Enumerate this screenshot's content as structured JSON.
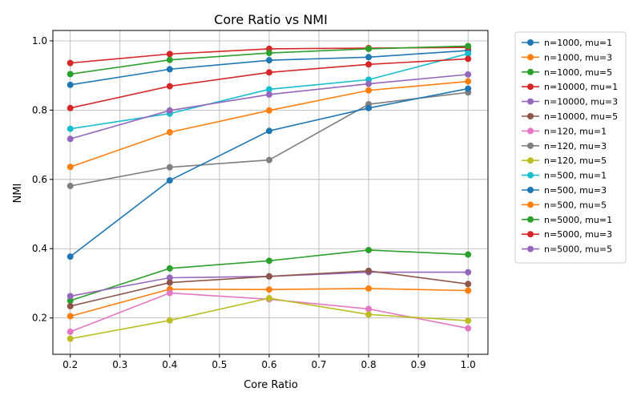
{
  "chart_data": {
    "type": "line",
    "title": "Core Ratio vs NMI",
    "xlabel": "Core Ratio",
    "ylabel": "NMI",
    "xlim": [
      0.165,
      1.04
    ],
    "ylim": [
      0.095,
      1.03
    ],
    "xticks": [
      0.2,
      0.3,
      0.4,
      0.5,
      0.6,
      0.7,
      0.8,
      0.9,
      1.0
    ],
    "xtick_labels": [
      "0.2",
      "0.3",
      "0.4",
      "0.5",
      "0.6",
      "0.7",
      "0.8",
      "0.9",
      "1.0"
    ],
    "yticks": [
      0.2,
      0.4,
      0.6,
      0.8,
      1.0
    ],
    "ytick_labels": [
      "0.2",
      "0.4",
      "0.6",
      "0.8",
      "1.0"
    ],
    "grid": true,
    "legend_position": "outside-right",
    "x": [
      0.2,
      0.4,
      0.6,
      0.8,
      1.0
    ],
    "series": [
      {
        "name": "n=1000, mu=1",
        "color": "#1f77b4",
        "values": [
          0.873,
          0.918,
          0.944,
          0.953,
          0.972
        ]
      },
      {
        "name": "n=1000, mu=3",
        "color": "#ff7f0e",
        "values": [
          0.205,
          0.283,
          0.282,
          0.285,
          0.279
        ]
      },
      {
        "name": "n=1000, mu=5",
        "color": "#2ca02c",
        "values": [
          0.25,
          0.343,
          0.365,
          0.396,
          0.383
        ]
      },
      {
        "name": "n=10000, mu=1",
        "color": "#d62728",
        "values": [
          0.936,
          0.962,
          0.977,
          0.979,
          0.981
        ]
      },
      {
        "name": "n=10000, mu=3",
        "color": "#9467bd",
        "values": [
          0.263,
          0.316,
          0.32,
          0.332,
          0.332
        ]
      },
      {
        "name": "n=10000, mu=5",
        "color": "#8c564b",
        "values": [
          0.234,
          0.302,
          0.32,
          0.336,
          0.298
        ]
      },
      {
        "name": "n=120, mu=1",
        "color": "#e377c2",
        "values": [
          0.16,
          0.272,
          0.254,
          0.226,
          0.17
        ]
      },
      {
        "name": "n=120, mu=3",
        "color": "#7f7f7f",
        "values": [
          0.581,
          0.635,
          0.656,
          0.817,
          0.851
        ]
      },
      {
        "name": "n=120, mu=5",
        "color": "#bcbd22",
        "values": [
          0.14,
          0.193,
          0.257,
          0.21,
          0.192
        ]
      },
      {
        "name": "n=500, mu=1",
        "color": "#17becf",
        "values": [
          0.746,
          0.79,
          0.86,
          0.888,
          0.963
        ]
      },
      {
        "name": "n=500, mu=3",
        "color": "#1f77b4",
        "values": [
          0.377,
          0.597,
          0.74,
          0.806,
          0.862
        ]
      },
      {
        "name": "n=500, mu=5",
        "color": "#ff7f0e",
        "values": [
          0.636,
          0.736,
          0.799,
          0.857,
          0.883
        ]
      },
      {
        "name": "n=5000, mu=1",
        "color": "#2ca02c",
        "values": [
          0.904,
          0.945,
          0.965,
          0.977,
          0.985
        ]
      },
      {
        "name": "n=5000, mu=3",
        "color": "#d62728",
        "values": [
          0.806,
          0.869,
          0.909,
          0.932,
          0.948
        ]
      },
      {
        "name": "n=5000, mu=5",
        "color": "#9467bd",
        "values": [
          0.717,
          0.799,
          0.845,
          0.876,
          0.903
        ]
      }
    ]
  }
}
